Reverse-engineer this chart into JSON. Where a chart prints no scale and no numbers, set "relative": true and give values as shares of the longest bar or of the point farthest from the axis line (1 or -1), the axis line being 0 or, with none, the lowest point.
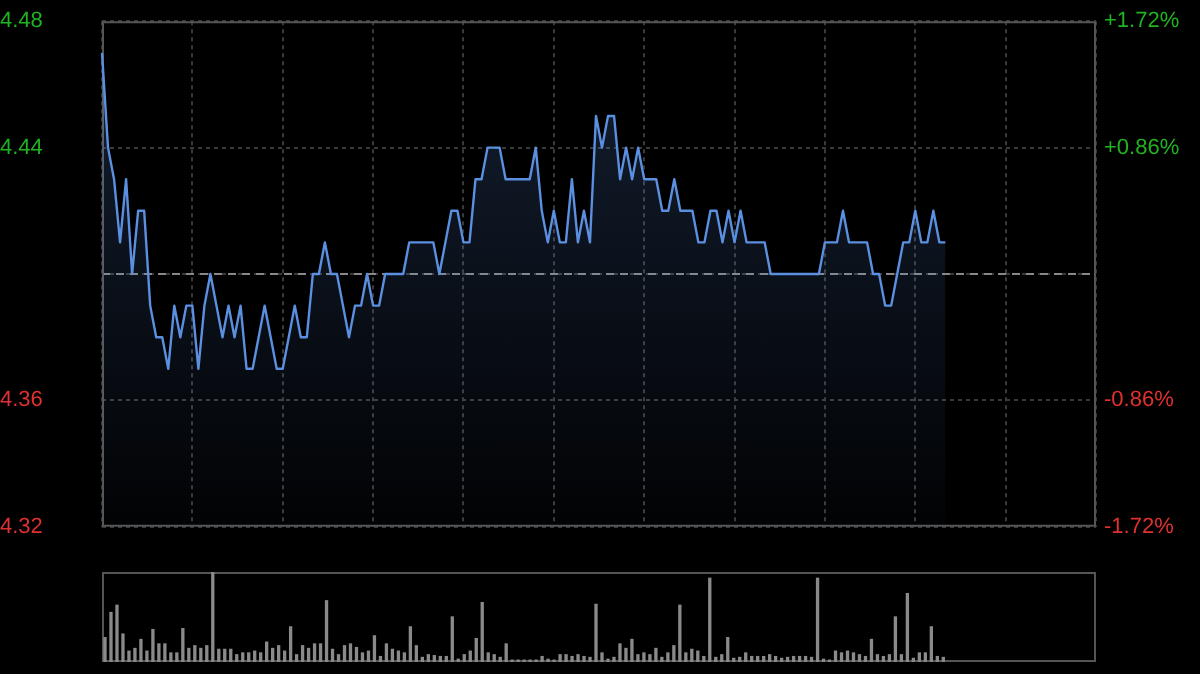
{
  "chart_data": [
    {
      "type": "area",
      "categories": [
        null,
        null,
        null,
        null,
        null,
        null,
        null,
        null,
        null,
        null,
        null,
        null,
        null,
        null,
        null,
        null,
        null,
        null,
        null,
        null,
        null,
        null,
        null,
        null,
        null,
        null,
        null,
        null,
        null,
        null,
        null,
        null,
        null,
        null,
        null,
        null,
        null,
        null,
        null,
        null,
        null,
        null,
        null,
        null,
        null,
        null,
        null,
        null,
        null,
        null,
        null,
        null,
        null,
        null,
        null,
        null,
        null,
        null,
        null,
        null,
        null,
        null,
        null,
        null,
        null,
        null,
        null,
        null,
        null,
        null,
        null,
        null,
        null,
        null,
        null,
        null,
        null,
        null,
        null,
        null,
        null,
        null,
        null,
        null,
        null,
        null,
        null,
        null,
        null,
        null,
        null,
        null,
        null,
        null,
        null,
        null,
        null,
        null,
        null,
        null,
        null,
        null,
        null,
        null,
        null,
        null,
        null,
        null,
        null,
        null,
        null,
        null,
        null,
        null,
        null,
        null,
        null,
        null,
        null,
        null,
        null,
        null,
        null,
        null,
        null,
        null,
        null,
        null,
        null,
        null,
        null,
        null,
        null,
        null,
        null,
        null,
        null,
        null,
        null,
        null,
        null,
        null,
        null,
        null,
        null,
        null,
        null,
        null,
        null,
        null,
        null,
        null,
        null,
        null,
        null,
        null,
        null,
        null,
        null,
        null,
        null,
        null,
        null,
        null,
        null,
        null
      ],
      "series": [
        {
          "color": "#5b8fe0",
          "values": [
            4.47,
            4.44,
            4.43,
            4.41,
            4.43,
            4.4,
            4.42,
            4.42,
            4.39,
            4.38,
            4.38,
            4.37,
            4.39,
            4.38,
            4.39,
            4.39,
            4.37,
            4.39,
            4.4,
            4.39,
            4.38,
            4.39,
            4.38,
            4.39,
            4.37,
            4.37,
            4.38,
            4.39,
            4.38,
            4.37,
            4.37,
            4.38,
            4.39,
            4.38,
            4.38,
            4.4,
            4.4,
            4.41,
            4.4,
            4.4,
            4.39,
            4.38,
            4.39,
            4.39,
            4.4,
            4.39,
            4.39,
            4.4,
            4.4,
            4.4,
            4.4,
            4.41,
            4.41,
            4.41,
            4.41,
            4.41,
            4.4,
            4.41,
            4.42,
            4.42,
            4.41,
            4.41,
            4.43,
            4.43,
            4.44,
            4.44,
            4.44,
            4.43,
            4.43,
            4.43,
            4.43,
            4.43,
            4.44,
            4.42,
            4.41,
            4.42,
            4.41,
            4.41,
            4.43,
            4.41,
            4.42,
            4.41,
            4.45,
            4.44,
            4.45,
            4.45,
            4.43,
            4.44,
            4.43,
            4.44,
            4.43,
            4.43,
            4.43,
            4.42,
            4.42,
            4.43,
            4.42,
            4.42,
            4.42,
            4.41,
            4.41,
            4.42,
            4.42,
            4.41,
            4.42,
            4.41,
            4.42,
            4.41,
            4.41,
            4.41,
            4.41,
            4.4,
            4.4,
            4.4,
            4.4,
            4.4,
            4.4,
            4.4,
            4.4,
            4.4,
            4.41,
            4.41,
            4.41,
            4.42,
            4.41,
            4.41,
            4.41,
            4.41,
            4.4,
            4.4,
            4.39,
            4.39,
            4.4,
            4.41,
            4.41,
            4.42,
            4.41,
            4.41,
            4.42,
            4.41,
            4.41,
            null,
            null,
            null,
            null,
            null,
            null,
            null,
            null,
            null,
            null,
            null,
            null,
            null,
            null,
            null,
            null,
            null,
            null,
            null,
            null,
            null,
            null,
            null,
            null,
            null
          ]
        }
      ],
      "ylim": [
        4.32,
        4.48
      ],
      "yticks": [
        4.32,
        4.36,
        {
          "value": 4.4,
          "label": null
        },
        4.44,
        4.48
      ],
      "y2lim": [
        -1.72,
        1.72
      ],
      "y2ticks": [
        {
          "value": -1.72,
          "label": "-1.72%"
        },
        {
          "value": -0.86,
          "label": "-0.86%"
        },
        {
          "value": 0,
          "label": null
        },
        {
          "value": 0.86,
          "label": "+0.86%"
        },
        {
          "value": 1.72,
          "label": "+1.72%"
        }
      ],
      "ref_lines": [
        {
          "axis": "y",
          "value": 4.4,
          "color": "#888888",
          "line_style": "dashed"
        }
      ],
      "grid": true,
      "tick_labels": "y"
    },
    {
      "type": "bar",
      "relative": true,
      "color": "#8a8a8a",
      "categories": [
        null,
        null,
        null,
        null,
        null,
        null,
        null,
        null,
        null,
        null,
        null,
        null,
        null,
        null,
        null,
        null,
        null,
        null,
        null,
        null,
        null,
        null,
        null,
        null,
        null,
        null,
        null,
        null,
        null,
        null,
        null,
        null,
        null,
        null,
        null,
        null,
        null,
        null,
        null,
        null,
        null,
        null,
        null,
        null,
        null,
        null,
        null,
        null,
        null,
        null,
        null,
        null,
        null,
        null,
        null,
        null,
        null,
        null,
        null,
        null,
        null,
        null,
        null,
        null,
        null,
        null,
        null,
        null,
        null,
        null,
        null,
        null,
        null,
        null,
        null,
        null,
        null,
        null,
        null,
        null,
        null,
        null,
        null,
        null,
        null,
        null,
        null,
        null,
        null,
        null,
        null,
        null,
        null,
        null,
        null,
        null,
        null,
        null,
        null,
        null,
        null,
        null,
        null,
        null,
        null,
        null,
        null,
        null,
        null,
        null,
        null,
        null,
        null,
        null,
        null,
        null,
        null,
        null,
        null,
        null,
        null,
        null,
        null,
        null,
        null,
        null,
        null,
        null,
        null,
        null,
        null,
        null,
        null,
        null,
        null,
        null,
        null,
        null,
        null,
        null,
        null,
        null,
        null,
        null,
        null,
        null,
        null,
        null,
        null,
        null,
        null,
        null,
        null,
        null,
        null,
        null,
        null,
        null,
        null,
        null,
        null,
        null,
        null,
        null,
        null,
        null
      ],
      "values": [
        0.27,
        0.55,
        0.63,
        0.31,
        0.12,
        0.15,
        0.25,
        0.12,
        0.36,
        0.2,
        0.2,
        0.1,
        0.1,
        0.37,
        0.15,
        0.18,
        0.15,
        0.18,
        1,
        0.14,
        0.14,
        0.14,
        0.08,
        0.1,
        0.1,
        0.12,
        0.1,
        0.22,
        0.15,
        0.18,
        0.12,
        0.39,
        0.08,
        0.18,
        0.15,
        0.2,
        0.2,
        0.68,
        0.14,
        0.08,
        0.18,
        0.2,
        0.16,
        0.1,
        0.12,
        0.29,
        0.06,
        0.2,
        0.14,
        0.12,
        0.1,
        0.39,
        0.18,
        0.05,
        0.08,
        0.07,
        0.06,
        0.06,
        0.5,
        0.03,
        0.08,
        0.12,
        0.26,
        0.66,
        0.1,
        0.08,
        0.05,
        0.2,
        0.02,
        0.02,
        0.02,
        0.02,
        0.02,
        0.06,
        0.03,
        0.02,
        0.08,
        0.08,
        0.06,
        0.08,
        0.06,
        0.05,
        0.64,
        0.1,
        0.03,
        0.05,
        0.2,
        0.15,
        0.25,
        0.08,
        0.1,
        0.08,
        0.15,
        0.05,
        0.1,
        0.18,
        0.63,
        0.1,
        0.14,
        0.12,
        0.06,
        0.93,
        0.05,
        0.08,
        0.27,
        0.04,
        0.05,
        0.1,
        0.06,
        0.06,
        0.06,
        0.08,
        0.06,
        0.04,
        0.05,
        0.06,
        0.06,
        0.06,
        0.05,
        0.93,
        0.03,
        0.02,
        0.12,
        0.1,
        0.12,
        0.1,
        0.08,
        0.06,
        0.25,
        0.08,
        0.06,
        0.08,
        0.5,
        0.08,
        0.76,
        0.04,
        0.1,
        0.1,
        0.39,
        0.06,
        0.05,
        null,
        null,
        null,
        null,
        null,
        null,
        null,
        null,
        null,
        null,
        null,
        null,
        null,
        null,
        null,
        null,
        null,
        null,
        null,
        null,
        null,
        null,
        null,
        null,
        null
      ]
    }
  ]
}
